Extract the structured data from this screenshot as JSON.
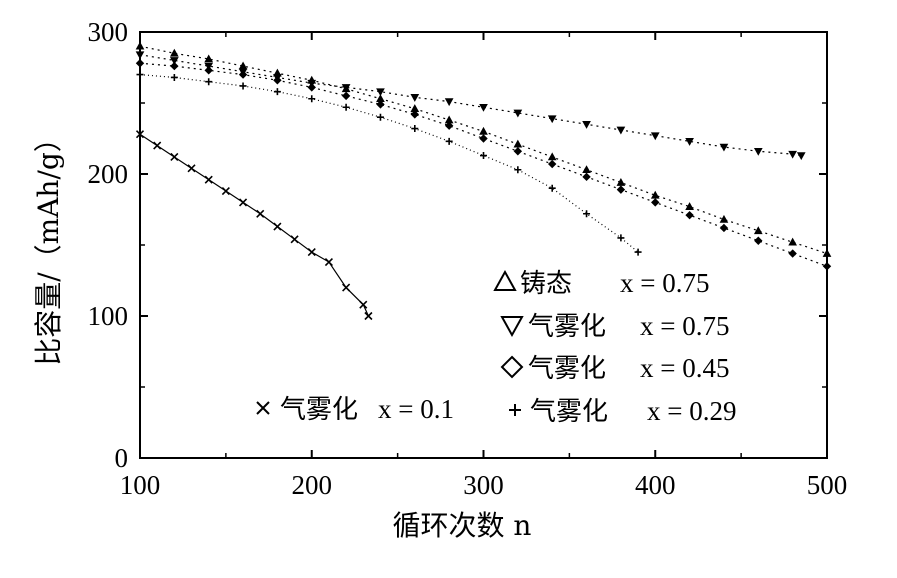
{
  "chart_data": {
    "type": "scatter",
    "xlabel": "循环次数 n",
    "ylabel": "比容量/（mAh/g）",
    "xlim": [
      100,
      500
    ],
    "ylim": [
      0,
      300
    ],
    "x_ticks": [
      "100",
      "200",
      "300",
      "400",
      "500"
    ],
    "y_ticks": [
      "0",
      "100",
      "200",
      "300"
    ],
    "grid": false,
    "legend_position": "inside, lower-right",
    "series": [
      {
        "name": "铸态 x=0.75",
        "marker": "triangle-up",
        "x": [
          100,
          120,
          140,
          160,
          180,
          200,
          220,
          240,
          260,
          280,
          300,
          320,
          340,
          360,
          380,
          400,
          420,
          440,
          460,
          480,
          500
        ],
        "y": [
          290,
          285,
          281,
          276,
          271,
          266,
          260,
          253,
          246,
          238,
          230,
          221,
          212,
          203,
          194,
          185,
          177,
          168,
          160,
          152,
          144
        ]
      },
      {
        "name": "气雾化 x=0.75",
        "marker": "triangle-down",
        "x": [
          100,
          120,
          140,
          160,
          180,
          200,
          220,
          240,
          260,
          280,
          300,
          320,
          340,
          360,
          380,
          400,
          420,
          440,
          460,
          480,
          485
        ],
        "y": [
          284,
          280,
          276,
          272,
          268,
          264,
          261,
          258,
          254,
          251,
          247,
          243,
          239,
          235,
          231,
          227,
          223,
          219,
          216,
          214,
          213
        ]
      },
      {
        "name": "气雾化 x=0.45",
        "marker": "diamond",
        "x": [
          100,
          120,
          140,
          160,
          180,
          200,
          220,
          240,
          260,
          280,
          300,
          320,
          340,
          360,
          380,
          400,
          420,
          440,
          460,
          480,
          500
        ],
        "y": [
          278,
          276,
          273,
          270,
          266,
          261,
          255,
          249,
          242,
          234,
          225,
          216,
          207,
          198,
          189,
          180,
          171,
          162,
          153,
          144,
          135
        ]
      },
      {
        "name": "气雾化 x=0.29",
        "marker": "plus",
        "x": [
          100,
          120,
          140,
          160,
          180,
          200,
          220,
          240,
          260,
          280,
          300,
          320,
          340,
          360,
          380,
          390
        ],
        "y": [
          270,
          268,
          265,
          262,
          258,
          253,
          247,
          240,
          232,
          223,
          213,
          203,
          190,
          172,
          155,
          145
        ]
      },
      {
        "name": "气雾化 x=0.1",
        "marker": "cross",
        "x": [
          100,
          110,
          120,
          130,
          140,
          150,
          160,
          170,
          180,
          190,
          200,
          210,
          220,
          230,
          233
        ],
        "y": [
          228,
          220,
          212,
          204,
          196,
          188,
          180,
          172,
          163,
          154,
          145,
          138,
          120,
          108,
          100
        ]
      }
    ],
    "legend": [
      {
        "marker": "triangle-up",
        "label": "铸态",
        "formula": "x = 0.75"
      },
      {
        "marker": "triangle-down",
        "label": "气雾化",
        "formula": "x = 0.75"
      },
      {
        "marker": "diamond",
        "label": "气雾化",
        "formula": "x = 0.45"
      },
      {
        "marker": "cross",
        "label": "气雾化",
        "formula": "x = 0.1"
      },
      {
        "marker": "plus",
        "label": "气雾化",
        "formula": "x = 0.29"
      }
    ]
  }
}
